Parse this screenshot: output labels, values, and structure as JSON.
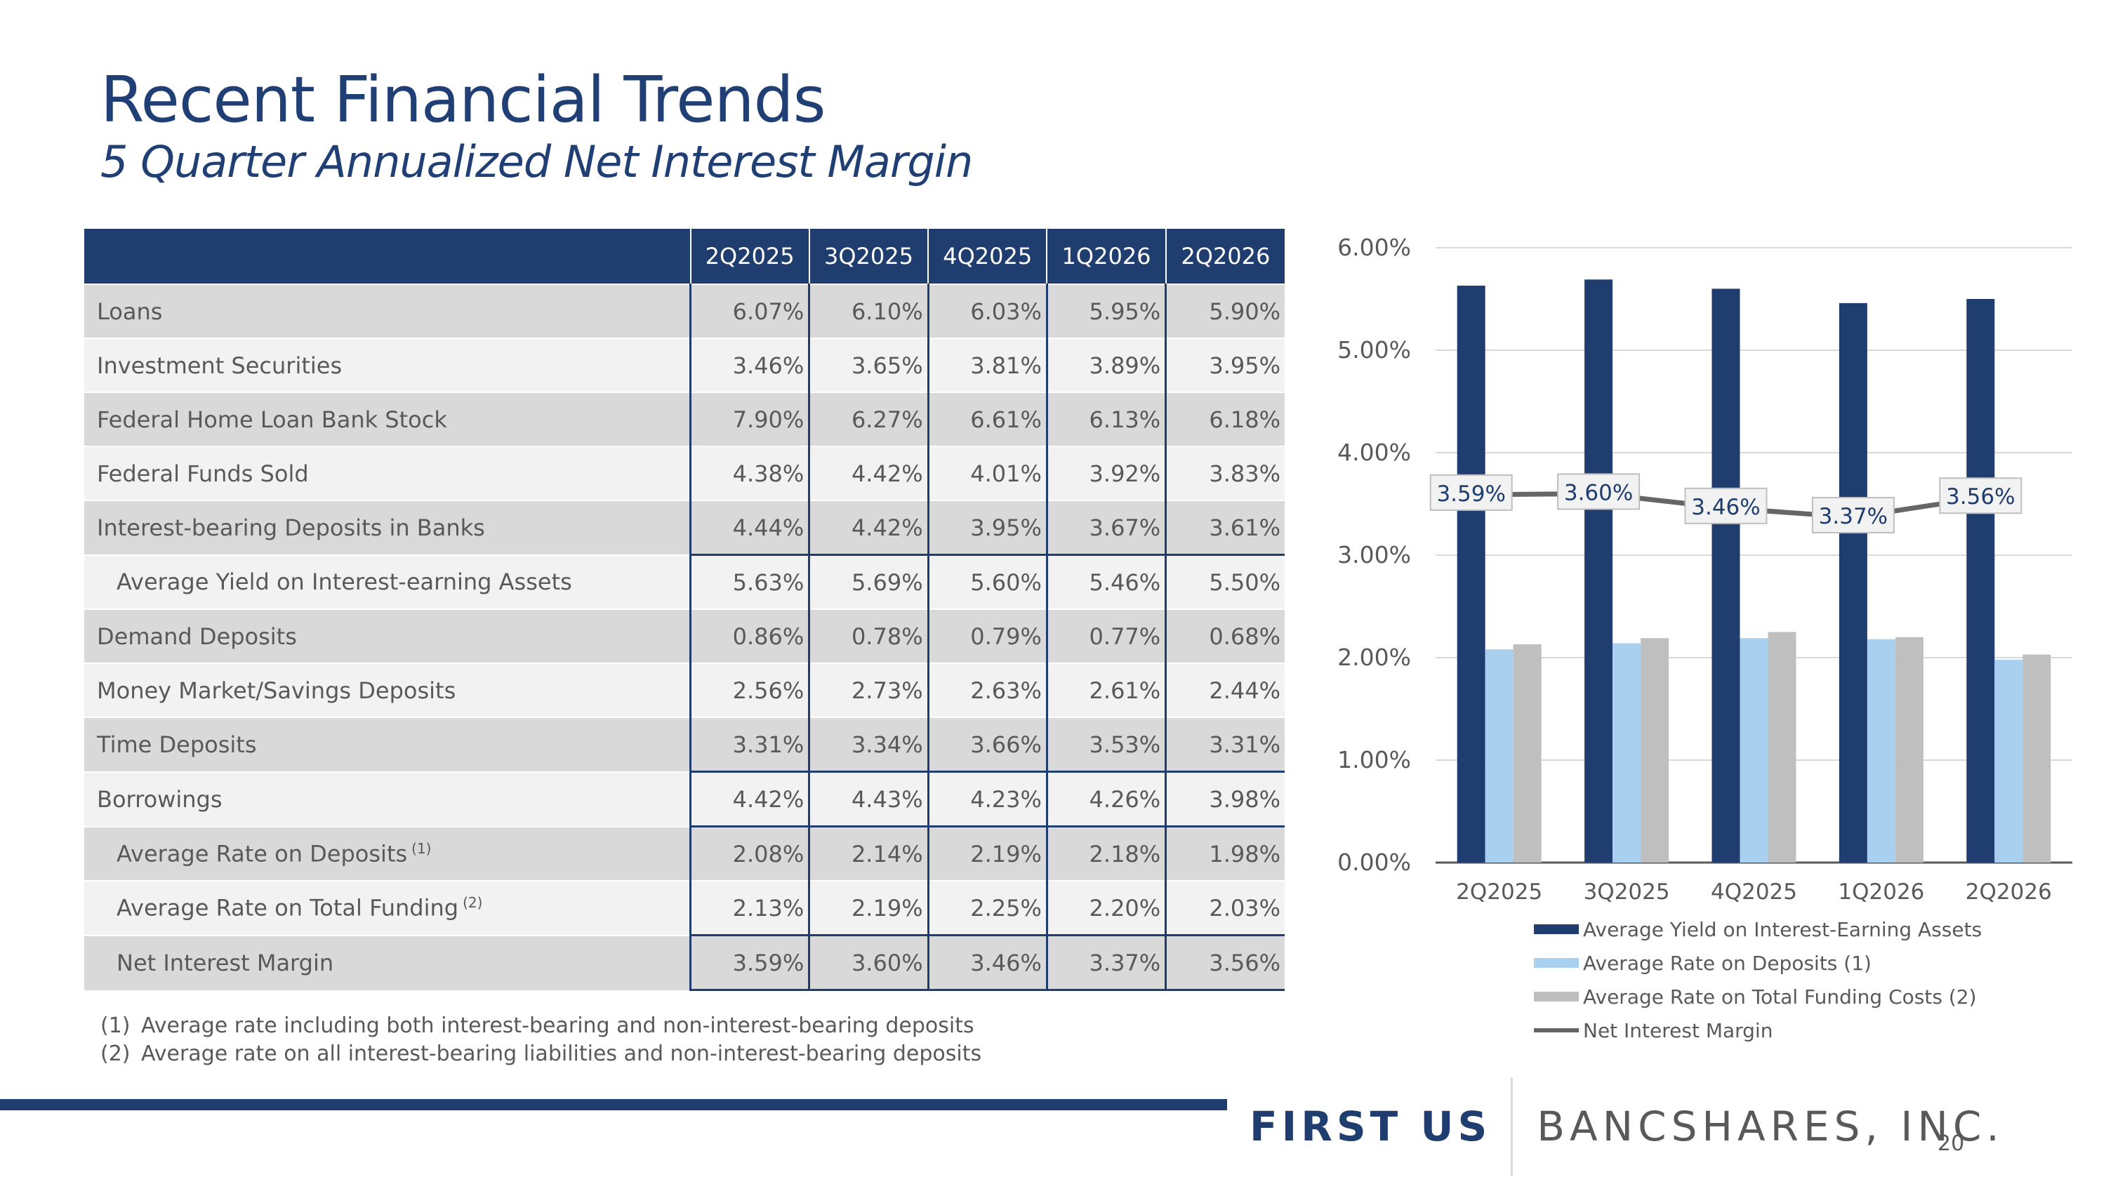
{
  "header": {
    "title": "Recent Financial Trends",
    "subtitle": "5 Quarter Annualized Net Interest Margin"
  },
  "table": {
    "columns": [
      "2Q2025",
      "3Q2025",
      "4Q2025",
      "1Q2026",
      "2Q2026"
    ],
    "rows": [
      {
        "label": "Loans",
        "values": [
          "6.07%",
          "6.10%",
          "6.03%",
          "5.95%",
          "5.90%"
        ]
      },
      {
        "label": "Investment Securities",
        "values": [
          "3.46%",
          "3.65%",
          "3.81%",
          "3.89%",
          "3.95%"
        ]
      },
      {
        "label": "Federal Home Loan Bank Stock",
        "values": [
          "7.90%",
          "6.27%",
          "6.61%",
          "6.13%",
          "6.18%"
        ]
      },
      {
        "label": "Federal Funds Sold",
        "values": [
          "4.38%",
          "4.42%",
          "4.01%",
          "3.92%",
          "3.83%"
        ]
      },
      {
        "label": "Interest-bearing Deposits in Banks",
        "values": [
          "4.44%",
          "4.42%",
          "3.95%",
          "3.67%",
          "3.61%"
        ]
      },
      {
        "label": "Average Yield on Interest-earning Assets",
        "values": [
          "5.63%",
          "5.69%",
          "5.60%",
          "5.46%",
          "5.50%"
        ]
      },
      {
        "label": "Demand Deposits",
        "values": [
          "0.86%",
          "0.78%",
          "0.79%",
          "0.77%",
          "0.68%"
        ]
      },
      {
        "label": "Money Market/Savings Deposits",
        "values": [
          "2.56%",
          "2.73%",
          "2.63%",
          "2.61%",
          "2.44%"
        ]
      },
      {
        "label": "Time Deposits",
        "values": [
          "3.31%",
          "3.34%",
          "3.66%",
          "3.53%",
          "3.31%"
        ]
      },
      {
        "label": "Borrowings",
        "values": [
          "4.42%",
          "4.43%",
          "4.23%",
          "4.26%",
          "3.98%"
        ]
      },
      {
        "label": "Average Rate on Deposits",
        "note": "(1)",
        "values": [
          "2.08%",
          "2.14%",
          "2.19%",
          "2.18%",
          "1.98%"
        ]
      },
      {
        "label": "Average Rate on Total Funding",
        "note": "(2)",
        "values": [
          "2.13%",
          "2.19%",
          "2.25%",
          "2.20%",
          "2.03%"
        ]
      },
      {
        "label": "Net Interest Margin",
        "values": [
          "3.59%",
          "3.60%",
          "3.46%",
          "3.37%",
          "3.56%"
        ]
      }
    ]
  },
  "footnotes": [
    {
      "marker": "(1)",
      "text": "Average rate including both interest-bearing and non-interest-bearing deposits"
    },
    {
      "marker": "(2)",
      "text": "Average rate on all interest-bearing liabilities and non-interest-bearing deposits"
    }
  ],
  "chart_data": {
    "type": "bar",
    "categories": [
      "2Q2025",
      "3Q2025",
      "4Q2025",
      "1Q2026",
      "2Q2026"
    ],
    "ylim": [
      0,
      6
    ],
    "yticks": [
      "0.00%",
      "1.00%",
      "2.00%",
      "3.00%",
      "4.00%",
      "5.00%",
      "6.00%"
    ],
    "series": [
      {
        "name": "Average Yield on Interest-Earning Assets",
        "type": "bar",
        "color": "#1f3d6e",
        "values": [
          5.63,
          5.69,
          5.6,
          5.46,
          5.5
        ]
      },
      {
        "name": "Average Rate on Deposits (1)",
        "type": "bar",
        "color": "#a9d0ee",
        "values": [
          2.08,
          2.14,
          2.19,
          2.18,
          1.98
        ]
      },
      {
        "name": "Average Rate on Total Funding Costs (2)",
        "type": "bar",
        "color": "#bfbfbf",
        "values": [
          2.13,
          2.19,
          2.25,
          2.2,
          2.03
        ]
      },
      {
        "name": "Net Interest Margin",
        "type": "line",
        "color": "#666666",
        "values": [
          3.59,
          3.6,
          3.46,
          3.37,
          3.56
        ],
        "labels": [
          "3.59%",
          "3.60%",
          "3.46%",
          "3.37%",
          "3.56%"
        ]
      }
    ],
    "grid": true,
    "legend": "bottom"
  },
  "footer": {
    "logo_first": "FIRST US",
    "logo_rest": "BANCSHARES, INC.",
    "page_number": "20"
  }
}
